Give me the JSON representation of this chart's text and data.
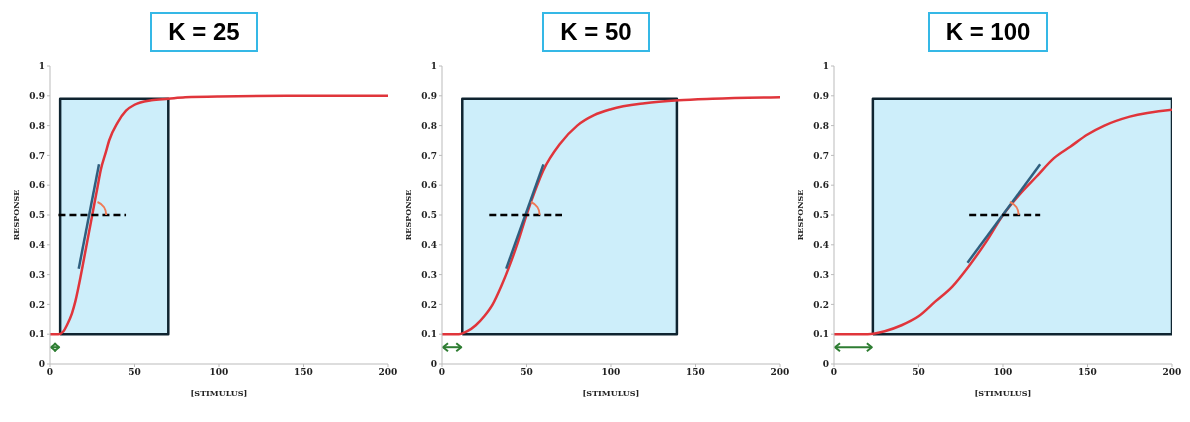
{
  "chart_data": [
    {
      "type": "line",
      "title": "K = 25",
      "xlabel": "[STIMULUS]",
      "ylabel": "RESPONSE",
      "xlim": [
        0,
        200
      ],
      "ylim": [
        0,
        1
      ],
      "xticks": [
        0,
        50,
        100,
        150,
        200
      ],
      "yticks": [
        0,
        0.1,
        0.2,
        0.3,
        0.4,
        0.5,
        0.6,
        0.7,
        0.8,
        0.9,
        1
      ],
      "marker": "none",
      "series": [
        {
          "type": "area",
          "color": "#cdeefa",
          "x": [
            6,
            6,
            70,
            70,
            6
          ],
          "values": [
            0.1,
            0.89,
            0.89,
            0.1,
            0.1
          ]
        },
        {
          "type": "line",
          "color": "#e0353b",
          "x": [
            0,
            5,
            8,
            10,
            13,
            15,
            18,
            20,
            23,
            25,
            28,
            30,
            33,
            35,
            40,
            45,
            50,
            60,
            70,
            80,
            100,
            150,
            200
          ],
          "values": [
            0.1,
            0.1,
            0.11,
            0.13,
            0.17,
            0.21,
            0.29,
            0.35,
            0.44,
            0.5,
            0.59,
            0.65,
            0.71,
            0.75,
            0.81,
            0.85,
            0.87,
            0.885,
            0.89,
            0.895,
            0.898,
            0.9,
            0.9
          ]
        },
        {
          "type": "line",
          "color": "#2f5f7f",
          "x": [
            17,
            29
          ],
          "values": [
            0.32,
            0.67
          ]
        },
        {
          "type": "line",
          "color": "#000000",
          "line_style": "dashed",
          "x": [
            5,
            45
          ],
          "values": [
            0.5,
            0.5
          ]
        }
      ]
    },
    {
      "type": "line",
      "title": "K = 50",
      "xlabel": "[STIMULUS]",
      "ylabel": "RESPONSE",
      "xlim": [
        0,
        200
      ],
      "ylim": [
        0,
        1
      ],
      "xticks": [
        0,
        50,
        100,
        150,
        200
      ],
      "yticks": [
        0,
        0.1,
        0.2,
        0.3,
        0.4,
        0.5,
        0.6,
        0.7,
        0.8,
        0.9,
        1
      ],
      "marker": "none",
      "series": [
        {
          "type": "area",
          "color": "#cdeefa",
          "x": [
            12,
            12,
            139,
            139,
            12
          ],
          "values": [
            0.1,
            0.89,
            0.89,
            0.1,
            0.1
          ]
        },
        {
          "type": "line",
          "color": "#e0353b",
          "x": [
            0,
            10,
            15,
            20,
            25,
            30,
            35,
            40,
            45,
            50,
            55,
            60,
            70,
            80,
            90,
            100,
            120,
            140,
            160,
            200
          ],
          "values": [
            0.1,
            0.1,
            0.11,
            0.13,
            0.16,
            0.2,
            0.26,
            0.33,
            0.41,
            0.5,
            0.58,
            0.65,
            0.74,
            0.8,
            0.835,
            0.855,
            0.875,
            0.885,
            0.89,
            0.895
          ]
        },
        {
          "type": "line",
          "color": "#2f5f7f",
          "x": [
            38,
            60
          ],
          "values": [
            0.32,
            0.67
          ]
        },
        {
          "type": "line",
          "color": "#000000",
          "line_style": "dashed",
          "x": [
            28,
            71
          ],
          "values": [
            0.5,
            0.5
          ]
        }
      ]
    },
    {
      "type": "line",
      "title": "K = 100",
      "xlabel": "[STIMULUS]",
      "ylabel": "RESPONSE",
      "xlim": [
        0,
        200
      ],
      "ylim": [
        0,
        1
      ],
      "xticks": [
        0,
        50,
        100,
        150,
        200
      ],
      "yticks": [
        0,
        0.1,
        0.2,
        0.3,
        0.4,
        0.5,
        0.6,
        0.7,
        0.8,
        0.9,
        1
      ],
      "marker": "none",
      "series": [
        {
          "type": "area",
          "color": "#cdeefa",
          "x": [
            23,
            23,
            200,
            200,
            23
          ],
          "values": [
            0.1,
            0.89,
            0.89,
            0.1,
            0.1
          ]
        },
        {
          "type": "line",
          "color": "#e0353b",
          "x": [
            0,
            20,
            30,
            40,
            50,
            60,
            70,
            80,
            90,
            100,
            110,
            120,
            130,
            140,
            150,
            160,
            175,
            200
          ],
          "values": [
            0.1,
            0.1,
            0.11,
            0.13,
            0.16,
            0.21,
            0.26,
            0.33,
            0.41,
            0.5,
            0.57,
            0.63,
            0.69,
            0.73,
            0.77,
            0.8,
            0.83,
            0.853
          ]
        },
        {
          "type": "line",
          "color": "#2f5f7f",
          "x": [
            79,
            122
          ],
          "values": [
            0.34,
            0.67
          ]
        },
        {
          "type": "line",
          "color": "#000000",
          "line_style": "dashed",
          "x": [
            80,
            122
          ],
          "values": [
            0.5,
            0.5
          ]
        }
      ]
    }
  ]
}
